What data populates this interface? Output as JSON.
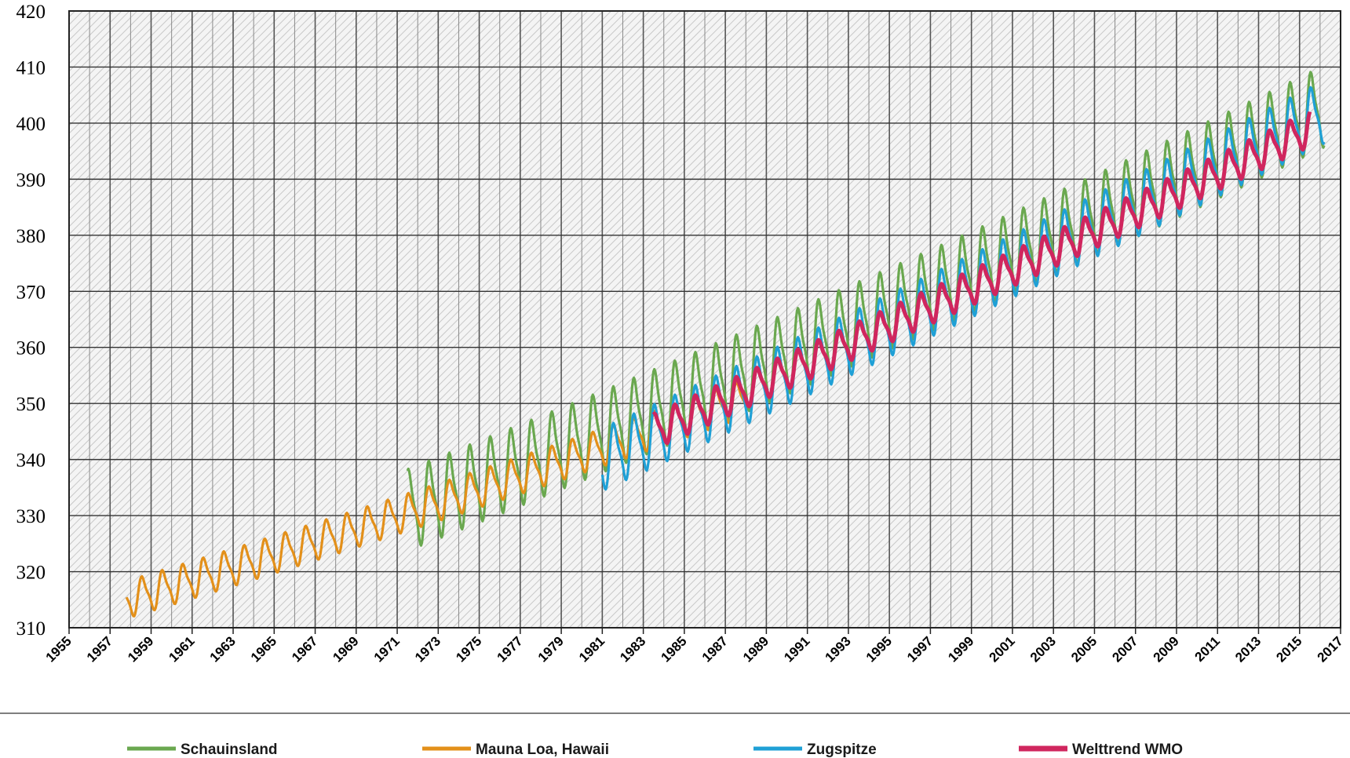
{
  "chart_data": {
    "type": "line",
    "title": "",
    "xlabel": "",
    "ylabel": "",
    "xlim": [
      1955,
      2017
    ],
    "ylim": [
      310,
      420
    ],
    "x_ticks": [
      "1955",
      "1957",
      "1959",
      "1961",
      "1963",
      "1965",
      "1967",
      "1969",
      "1971",
      "1973",
      "1975",
      "1977",
      "1979",
      "1981",
      "1983",
      "1985",
      "1987",
      "1989",
      "1991",
      "1993",
      "1995",
      "1997",
      "1999",
      "2001",
      "2003",
      "2005",
      "2007",
      "2009",
      "2011",
      "2013",
      "2015",
      "2017"
    ],
    "y_ticks": [
      "310",
      "320",
      "330",
      "340",
      "350",
      "360",
      "370",
      "380",
      "390",
      "400",
      "410",
      "420"
    ],
    "grid": true,
    "plot_background": "hatched light grey",
    "legend_position": "bottom",
    "series": [
      {
        "name": "Schauinsland",
        "color": "#6aa84f",
        "start": 1971.5,
        "end": 2016.2,
        "base_start": 331.0,
        "base_end": 403.0,
        "curvature": 16,
        "amplitude": 6.5
      },
      {
        "name": "Mauna Loa, Hawaii",
        "color": "#e3901a",
        "start": 1957.8,
        "end": 1988.0,
        "base_start": 315.0,
        "base_end": 351.0,
        "curvature": 6,
        "amplitude": 3.0
      },
      {
        "name": "Zugspitze",
        "color": "#1fa0d6",
        "start": 1981.0,
        "end": 2016.2,
        "base_start": 340.0,
        "base_end": 402.0,
        "curvature": 6,
        "amplitude": 5.0
      },
      {
        "name": "Welttrend WMO",
        "color": "#d0265e",
        "start": 1983.5,
        "end": 2015.5,
        "base_start": 345.0,
        "base_end": 399.0,
        "curvature": 4,
        "amplitude": 2.8
      }
    ]
  }
}
